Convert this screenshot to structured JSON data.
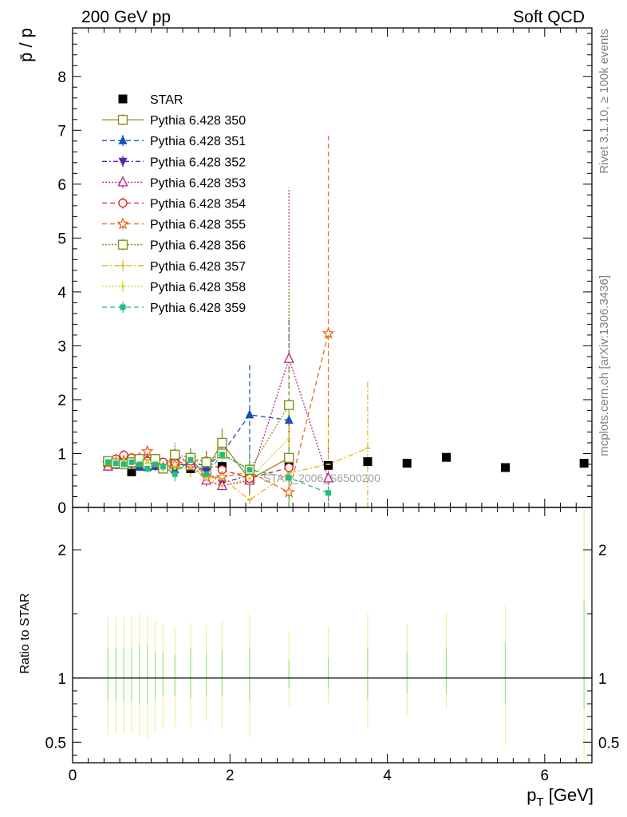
{
  "header": {
    "left_title": "200 GeV pp",
    "right_title": "Soft QCD"
  },
  "side_labels": {
    "rivet": "Rivet 3.1.10, ≥ 100k events",
    "mcplots": "mcplots.cern.ch [arXiv:1306.3436]"
  },
  "watermark": "STAR_2006_S6500200",
  "chart_data": [
    {
      "type": "scatter",
      "panel": "main",
      "ylabel": "p̄ / p",
      "xlabel": "",
      "xlim": [
        0,
        6.6
      ],
      "ylim": [
        0,
        8.9
      ],
      "xticks": [
        0,
        2,
        4,
        6
      ],
      "yticks": [
        0,
        1,
        2,
        3,
        4,
        5,
        6,
        7,
        8
      ],
      "ytick_labels": [
        "0",
        "1",
        "2",
        "3",
        "4",
        "5",
        "6",
        "7",
        "8"
      ],
      "legend_position": "top-left",
      "series": [
        {
          "name": "STAR",
          "color": "#000000",
          "marker": "square-filled",
          "dash": "none",
          "x": [
            0.45,
            0.55,
            0.65,
            0.75,
            0.85,
            0.95,
            1.05,
            1.15,
            1.3,
            1.5,
            1.7,
            1.9,
            2.25,
            2.75,
            3.25,
            3.75,
            4.25,
            4.75,
            5.5,
            6.5
          ],
          "y": [
            0.82,
            0.8,
            0.81,
            0.66,
            0.78,
            0.79,
            0.8,
            0.74,
            0.8,
            0.72,
            0.74,
            0.76,
            0.57,
            0.82,
            0.78,
            0.85,
            0.82,
            0.93,
            0.74,
            0.82
          ]
        },
        {
          "name": "Pythia 6.428 350",
          "color": "#8c8c1e",
          "marker": "square-open",
          "dash": "solid",
          "x": [
            0.45,
            0.55,
            0.65,
            0.75,
            0.85,
            0.95,
            1.05,
            1.15,
            1.3,
            1.5,
            1.7,
            1.9,
            2.25,
            2.75
          ],
          "y": [
            0.85,
            0.86,
            0.87,
            0.8,
            0.9,
            0.82,
            0.85,
            0.75,
            0.8,
            0.78,
            0.7,
            1.2,
            0.52,
            0.92
          ]
        },
        {
          "name": "Pythia 6.428 351",
          "color": "#1450b4",
          "marker": "triangle-up-filled",
          "dash": "6,4",
          "x": [
            0.45,
            0.55,
            0.65,
            0.75,
            0.85,
            0.95,
            1.05,
            1.15,
            1.3,
            1.5,
            1.7,
            1.9,
            2.25,
            2.75
          ],
          "y": [
            0.8,
            0.82,
            0.86,
            0.84,
            0.75,
            0.74,
            0.76,
            0.8,
            0.7,
            0.85,
            0.76,
            1.0,
            1.72,
            1.62
          ]
        },
        {
          "name": "Pythia 6.428 352",
          "color": "#5528aa",
          "marker": "triangle-down-filled",
          "dash": "6,3,2,3",
          "x": [
            0.45,
            0.55,
            0.65,
            0.75,
            0.85,
            0.95,
            1.05,
            1.15,
            1.3,
            1.5,
            1.7,
            1.9,
            2.25
          ],
          "y": [
            0.84,
            0.8,
            0.86,
            0.8,
            0.84,
            0.79,
            0.78,
            0.72,
            0.84,
            0.76,
            0.66,
            0.45,
            0.6
          ]
        },
        {
          "name": "Pythia 6.428 353",
          "color": "#be1e82",
          "marker": "triangle-up-open",
          "dash": "2,2",
          "x": [
            0.45,
            0.55,
            0.65,
            0.75,
            0.85,
            0.95,
            1.05,
            1.15,
            1.3,
            1.5,
            1.7,
            1.9,
            2.25,
            2.75,
            3.25
          ],
          "y": [
            0.76,
            0.84,
            0.88,
            0.84,
            0.82,
            0.88,
            0.84,
            0.78,
            0.98,
            0.82,
            0.5,
            0.4,
            0.5,
            2.76,
            0.54
          ]
        },
        {
          "name": "Pythia 6.428 354",
          "color": "#dc1e1e",
          "marker": "circle-open",
          "dash": "6,4",
          "x": [
            0.45,
            0.55,
            0.65,
            0.75,
            0.85,
            0.95,
            1.05,
            1.15,
            1.3,
            1.5,
            1.7,
            1.9,
            2.25,
            2.75
          ],
          "y": [
            0.84,
            0.9,
            0.97,
            0.92,
            0.88,
            0.86,
            0.88,
            0.84,
            0.82,
            0.86,
            0.86,
            0.7,
            0.54,
            0.74
          ]
        },
        {
          "name": "Pythia 6.428 355",
          "color": "#f0641e",
          "marker": "star-open",
          "dash": "6,4",
          "x": [
            0.45,
            0.55,
            0.65,
            0.75,
            0.85,
            0.95,
            1.05,
            1.15,
            1.3,
            1.5,
            1.7,
            1.9,
            2.25,
            2.75,
            3.25
          ],
          "y": [
            0.82,
            0.84,
            0.86,
            0.82,
            0.92,
            1.04,
            0.84,
            0.74,
            0.8,
            0.92,
            0.56,
            0.56,
            0.66,
            0.28,
            3.23
          ]
        },
        {
          "name": "Pythia 6.428 356",
          "color": "#829614",
          "marker": "square-open",
          "dash": "2,2",
          "x": [
            0.45,
            0.55,
            0.65,
            0.75,
            0.85,
            0.95,
            1.05,
            1.15,
            1.3,
            1.5,
            1.7,
            1.9,
            2.25,
            2.75
          ],
          "y": [
            0.86,
            0.82,
            0.8,
            0.84,
            0.9,
            0.8,
            0.9,
            0.72,
            0.98,
            0.92,
            0.84,
            1.0,
            0.7,
            1.9
          ]
        },
        {
          "name": "Pythia 6.428 357",
          "color": "#e6b414",
          "marker": "tick",
          "dash": "7,3,2,3",
          "x": [
            0.45,
            0.55,
            0.65,
            0.75,
            0.85,
            0.95,
            1.05,
            1.15,
            1.3,
            1.5,
            1.7,
            1.9,
            2.25,
            2.75,
            3.25,
            3.75
          ],
          "y": [
            0.84,
            0.82,
            0.8,
            0.86,
            0.8,
            0.82,
            0.76,
            0.8,
            0.76,
            0.72,
            0.56,
            0.54,
            0.14,
            0.64,
            0.8,
            1.1
          ]
        },
        {
          "name": "Pythia 6.428 358",
          "color": "#d2d21e",
          "marker": "dot",
          "dash": "2,2",
          "x": [
            0.45,
            0.55,
            0.65,
            0.75,
            0.85,
            0.95,
            1.05,
            1.15,
            1.3,
            1.5,
            1.7,
            1.9,
            2.25,
            2.75
          ],
          "y": [
            0.82,
            0.8,
            0.84,
            0.82,
            0.78,
            0.84,
            0.8,
            0.7,
            0.72,
            0.74,
            0.56,
            0.4,
            0.54,
            1.28
          ]
        },
        {
          "name": "Pythia 6.428 359",
          "color": "#1ebe82",
          "marker": "square-small-filled",
          "dash": "6,4",
          "x": [
            0.45,
            0.55,
            0.65,
            0.75,
            0.85,
            0.95,
            1.05,
            1.15,
            1.3,
            1.5,
            1.7,
            1.9,
            2.25,
            2.75,
            3.25
          ],
          "y": [
            0.84,
            0.82,
            0.8,
            0.84,
            0.8,
            0.72,
            0.8,
            0.76,
            0.62,
            0.88,
            0.62,
            0.98,
            0.7,
            0.55,
            0.27
          ]
        }
      ]
    },
    {
      "type": "scatter",
      "panel": "ratio",
      "ylabel": "Ratio to STAR",
      "xlabel": "p_T [GeV]",
      "xlim": [
        0,
        6.6
      ],
      "ylim": [
        0.34,
        2.33
      ],
      "xticks": [
        0,
        2,
        4,
        6
      ],
      "yticks": [
        0.5,
        1,
        2
      ],
      "ytick_labels": [
        "0.5",
        "1",
        "2"
      ],
      "reference_line": 1,
      "band_x": [
        0.45,
        0.55,
        0.65,
        0.75,
        0.85,
        0.95,
        1.05,
        1.15,
        1.3,
        1.5,
        1.7,
        1.9,
        2.25,
        2.75,
        3.25,
        3.75,
        4.25,
        4.75,
        5.5,
        6.5
      ],
      "outer_band": {
        "color": "#f0f098",
        "lo": [
          0.56,
          0.57,
          0.57,
          0.57,
          0.55,
          0.53,
          0.58,
          0.6,
          0.62,
          0.62,
          0.66,
          0.62,
          0.54,
          0.78,
          0.8,
          0.6,
          0.7,
          0.76,
          0.48,
          0.36
        ],
        "hi": [
          1.48,
          1.47,
          1.47,
          1.48,
          1.5,
          1.49,
          1.44,
          1.42,
          1.4,
          1.43,
          1.41,
          1.44,
          1.5,
          1.36,
          1.4,
          1.5,
          1.42,
          1.5,
          1.56,
          2.32
        ]
      },
      "inner_band": {
        "color": "#9ce678",
        "lo": [
          0.82,
          0.82,
          0.82,
          0.82,
          0.8,
          0.8,
          0.84,
          0.86,
          0.86,
          0.84,
          0.86,
          0.86,
          0.82,
          0.92,
          0.92,
          0.84,
          0.88,
          0.88,
          0.8,
          0.76
        ],
        "hi": [
          1.24,
          1.24,
          1.24,
          1.24,
          1.26,
          1.26,
          1.2,
          1.2,
          1.18,
          1.24,
          1.2,
          1.22,
          1.24,
          1.14,
          1.16,
          1.24,
          1.2,
          1.24,
          1.28,
          1.6
        ]
      }
    }
  ]
}
